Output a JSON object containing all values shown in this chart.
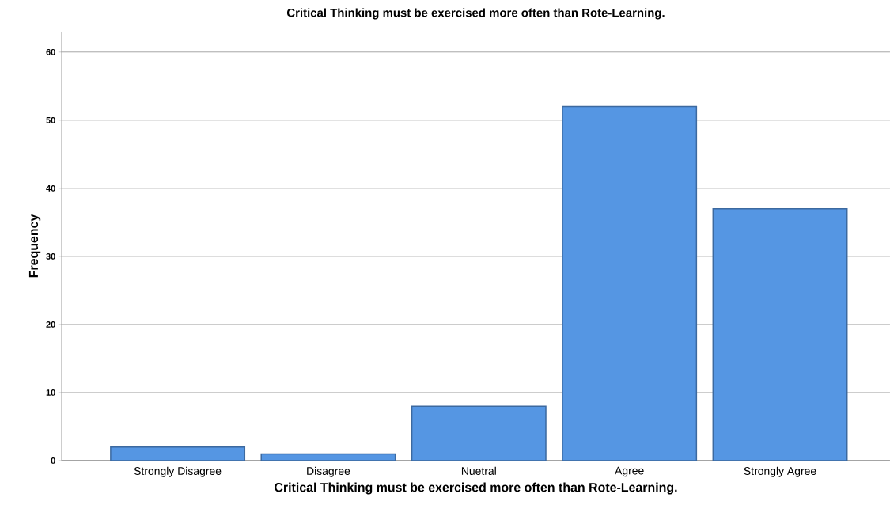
{
  "chart_data": {
    "type": "bar",
    "title": "Critical Thinking must be exercised more often than Rote-Learning.",
    "xlabel": "Critical Thinking must be exercised more often than Rote-Learning.",
    "ylabel": "Frequency",
    "categories": [
      "Strongly Disagree",
      "Disagree",
      "Nuetral",
      "Agree",
      "Strongly Agree"
    ],
    "values": [
      2,
      1,
      8,
      52,
      37
    ],
    "color": "#5596e3",
    "ylim": [
      0,
      63
    ],
    "yticks": [
      0,
      10,
      20,
      30,
      40,
      50,
      60
    ],
    "grid": "y"
  }
}
